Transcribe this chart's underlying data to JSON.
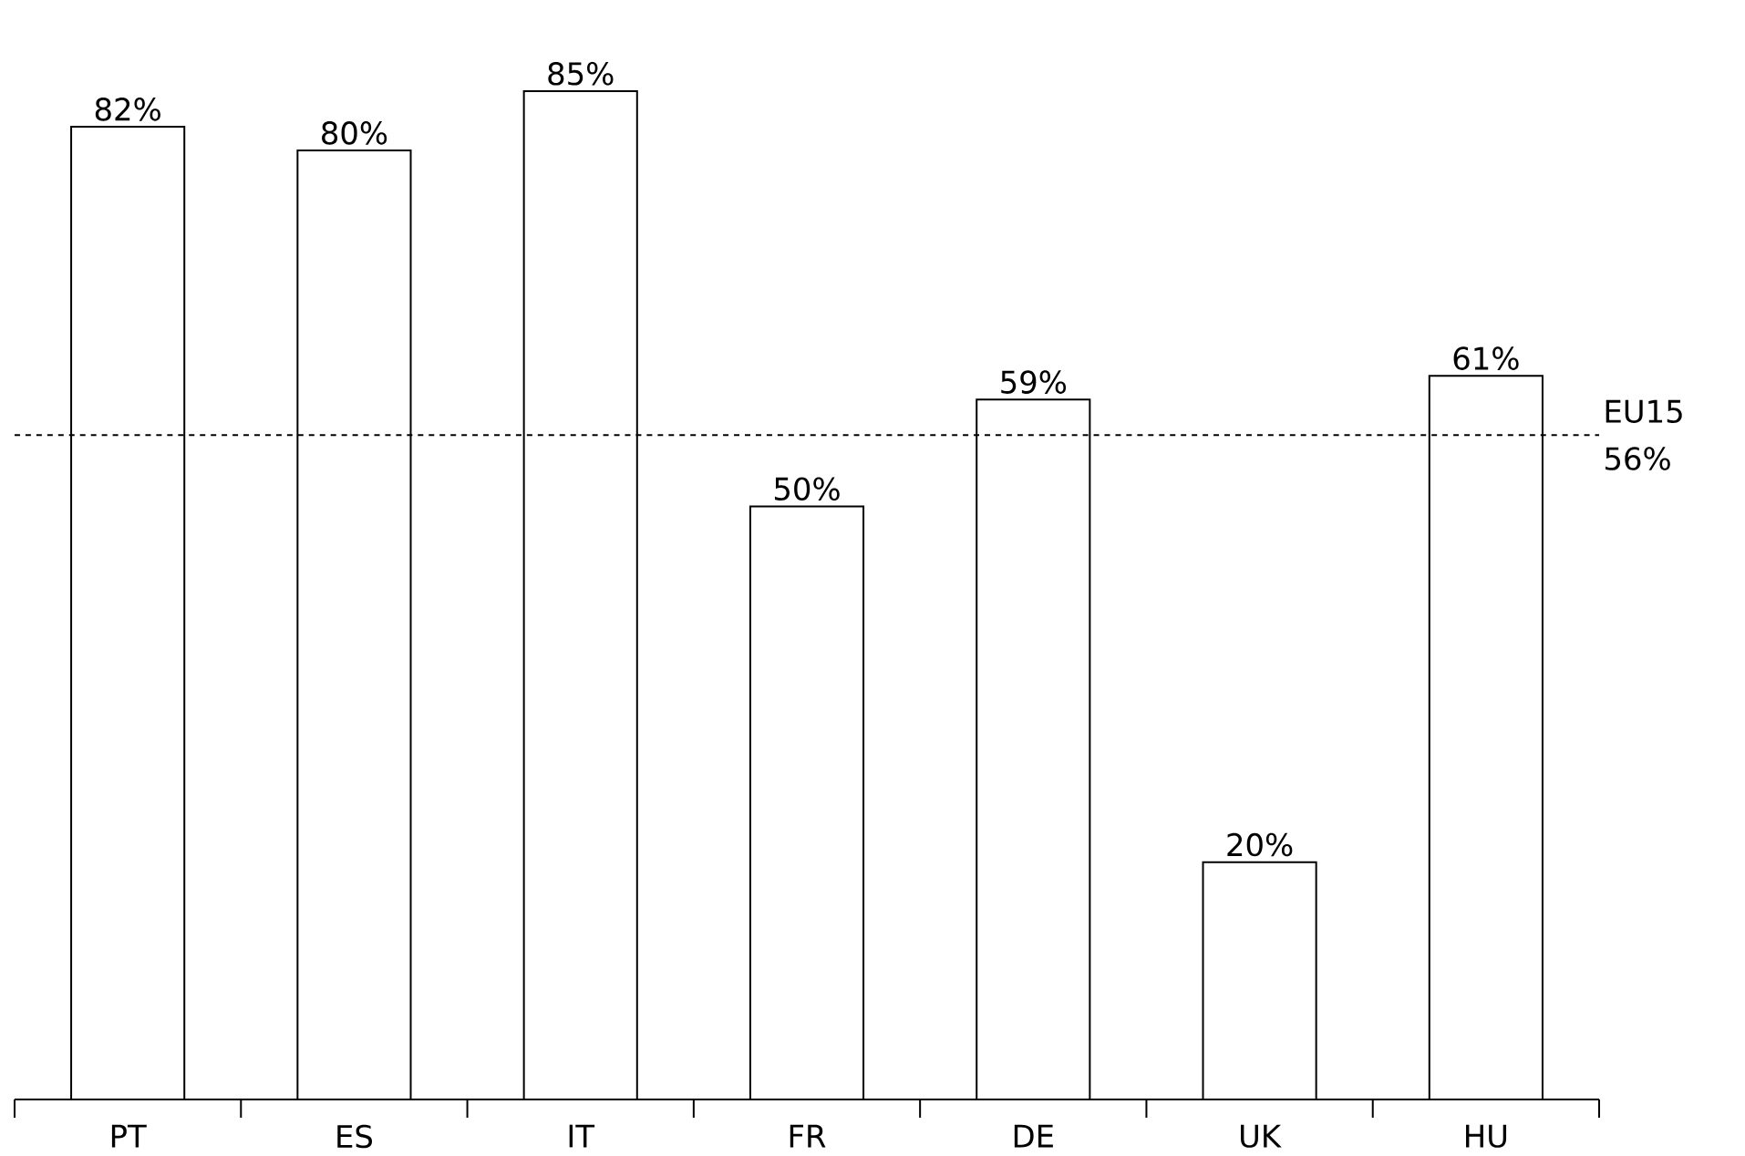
{
  "chart_data": {
    "type": "bar",
    "categories": [
      "PT",
      "ES",
      "IT",
      "FR",
      "DE",
      "UK",
      "HU"
    ],
    "values": [
      82,
      80,
      85,
      50,
      59,
      20,
      61
    ],
    "value_labels": [
      "82%",
      "80%",
      "85%",
      "50%",
      "59%",
      "20%",
      "61%"
    ],
    "color": "#ffffff",
    "tick_labels": "x",
    "ref_lines": [
      {
        "axis": "y",
        "value": 56,
        "label": "EU15 56%",
        "line_style": "dashed",
        "color": "#000000"
      }
    ]
  }
}
